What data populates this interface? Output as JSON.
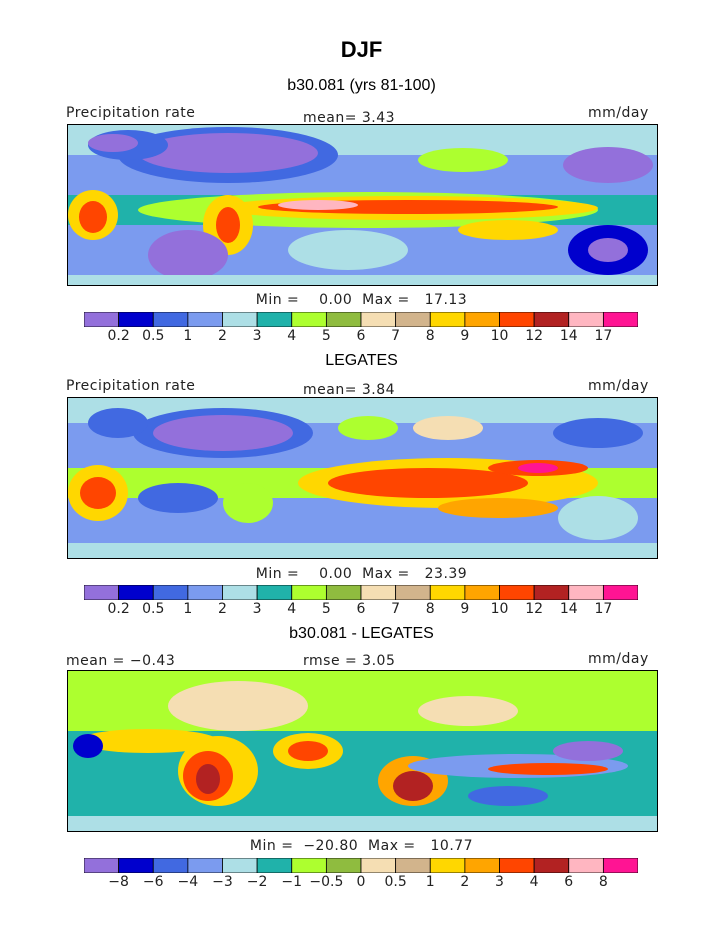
{
  "title": "DJF",
  "panels": [
    {
      "subtitle": "b30.081 (yrs 81-100)",
      "left_label": "Precipitation rate",
      "center_label": "mean=    3.43",
      "right_label": "mm/day",
      "minmax": "Min =    0.00  Max =   17.13"
    },
    {
      "subtitle": "LEGATES",
      "left_label": "Precipitation rate",
      "center_label": "mean=    3.84",
      "right_label": "mm/day",
      "minmax": "Min =    0.00  Max =   23.39"
    },
    {
      "subtitle": "b30.081 - LEGATES",
      "left_label": "mean =   −0.43",
      "center_label": "rmse =    3.05",
      "right_label": "mm/day",
      "minmax": "Min =  −20.80  Max =   10.77"
    }
  ],
  "colorbars": {
    "precip": {
      "levels": [
        "0.2",
        "0.5",
        "1",
        "2",
        "3",
        "4",
        "5",
        "6",
        "7",
        "8",
        "9",
        "10",
        "12",
        "14",
        "17"
      ],
      "colors": [
        "#9370DB",
        "#0000CD",
        "#4169E1",
        "#7B9BEF",
        "#ADDFE6",
        "#20B2AA",
        "#ADFF2F",
        "#8FBC3F",
        "#F5DEB3",
        "#D2B48C",
        "#FFD700",
        "#FFA500",
        "#FF4500",
        "#B22222",
        "#FFB6C1",
        "#FF1493"
      ]
    },
    "diff": {
      "levels": [
        "−8",
        "−6",
        "−4",
        "−3",
        "−2",
        "−1",
        "−0.5",
        "0",
        "0.5",
        "1",
        "2",
        "3",
        "4",
        "6",
        "8"
      ],
      "colors": [
        "#9370DB",
        "#0000CD",
        "#4169E1",
        "#7B9BEF",
        "#ADDFE6",
        "#20B2AA",
        "#ADFF2F",
        "#8FBC3F",
        "#F5DEB3",
        "#D2B48C",
        "#FFD700",
        "#FFA500",
        "#FF4500",
        "#B22222",
        "#FFB6C1",
        "#FF1493"
      ]
    }
  },
  "chart_data": [
    {
      "type": "heatmap",
      "title": "b30.081 (yrs 81-100)",
      "variable": "Precipitation rate",
      "units": "mm/day",
      "season": "DJF",
      "mean": 3.43,
      "min": 0.0,
      "max": 17.13,
      "contour_levels": [
        0.2,
        0.5,
        1,
        2,
        3,
        4,
        5,
        6,
        7,
        8,
        9,
        10,
        12,
        14,
        17
      ]
    },
    {
      "type": "heatmap",
      "title": "LEGATES",
      "variable": "Precipitation rate",
      "units": "mm/day",
      "season": "DJF",
      "mean": 3.84,
      "min": 0.0,
      "max": 23.39,
      "contour_levels": [
        0.2,
        0.5,
        1,
        2,
        3,
        4,
        5,
        6,
        7,
        8,
        9,
        10,
        12,
        14,
        17
      ]
    },
    {
      "type": "heatmap",
      "title": "b30.081 - LEGATES",
      "units": "mm/day",
      "season": "DJF",
      "mean": -0.43,
      "rmse": 3.05,
      "min": -20.8,
      "max": 10.77,
      "contour_levels": [
        -8,
        -6,
        -4,
        -3,
        -2,
        -1,
        -0.5,
        0,
        0.5,
        1,
        2,
        3,
        4,
        6,
        8
      ]
    }
  ]
}
